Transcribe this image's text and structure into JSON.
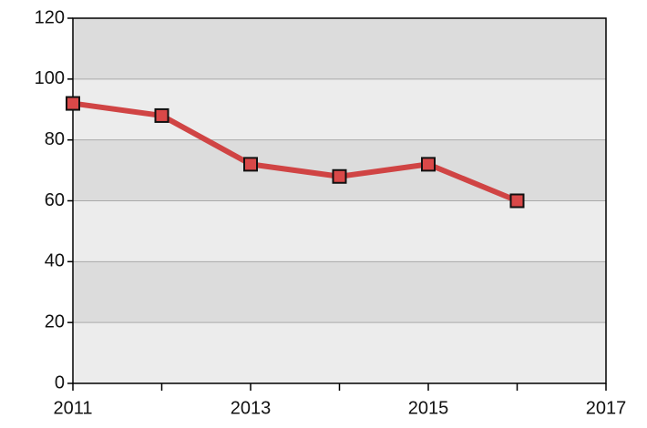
{
  "chart_data": {
    "type": "line",
    "x": [
      2011,
      2012,
      2013,
      2014,
      2015,
      2016
    ],
    "series": [
      {
        "color": "#d04444",
        "values": [
          92,
          88,
          72,
          68,
          72,
          60
        ]
      }
    ],
    "xlim": [
      2011,
      2017
    ],
    "xticks": [
      2011,
      2013,
      2015,
      2017
    ],
    "xminorticks": [
      2012,
      2014,
      2016
    ],
    "ylim": [
      0,
      120
    ],
    "yticks": [
      0,
      20,
      40,
      60,
      80,
      100,
      120
    ],
    "grid": true,
    "bands": [
      "#ececec",
      "#dcdcdc"
    ],
    "marker_color": "#d94848"
  }
}
